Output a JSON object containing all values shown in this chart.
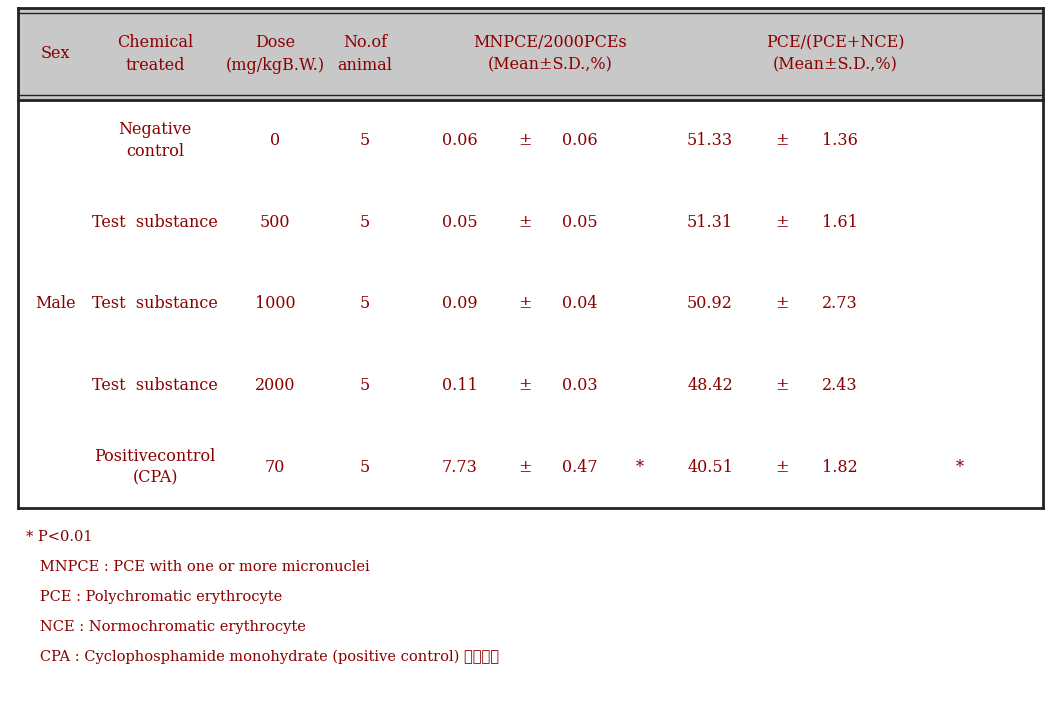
{
  "header_bg": "#c8c8c8",
  "body_text_color": "#8B0000",
  "border_color": "#222222",
  "rows": [
    {
      "sex": "",
      "chemical": "Negative\ncontrol",
      "dose": "0",
      "n": "5",
      "mnpce_mean": "0.06",
      "mnpce_sd": "0.06",
      "mnpce_sig": "",
      "pce_mean": "51.33",
      "pce_sd": "1.36",
      "pce_sig": ""
    },
    {
      "sex": "",
      "chemical": "Test  substance",
      "dose": "500",
      "n": "5",
      "mnpce_mean": "0.05",
      "mnpce_sd": "0.05",
      "mnpce_sig": "",
      "pce_mean": "51.31",
      "pce_sd": "1.61",
      "pce_sig": ""
    },
    {
      "sex": "Male",
      "chemical": "Test  substance",
      "dose": "1000",
      "n": "5",
      "mnpce_mean": "0.09",
      "mnpce_sd": "0.04",
      "mnpce_sig": "",
      "pce_mean": "50.92",
      "pce_sd": "2.73",
      "pce_sig": ""
    },
    {
      "sex": "",
      "chemical": "Test  substance",
      "dose": "2000",
      "n": "5",
      "mnpce_mean": "0.11",
      "mnpce_sd": "0.03",
      "mnpce_sig": "",
      "pce_mean": "48.42",
      "pce_sd": "2.43",
      "pce_sig": ""
    },
    {
      "sex": "",
      "chemical": "Positivecontrol\n(CPA)",
      "dose": "70",
      "n": "5",
      "mnpce_mean": "7.73",
      "mnpce_sd": "0.47",
      "mnpce_sig": "*",
      "pce_mean": "40.51",
      "pce_sd": "1.82",
      "pce_sig": "*"
    }
  ],
  "footnotes": [
    "* P<0.01",
    "   MNPCE : PCE with one or more micronuclei",
    "   PCE : Polychromatic erythrocyte",
    "   NCE : Normochromatic erythrocyte",
    "   CPA : Cyclophosphamide monohydrate (positive control) 식용배지"
  ],
  "background_color": "#ffffff"
}
